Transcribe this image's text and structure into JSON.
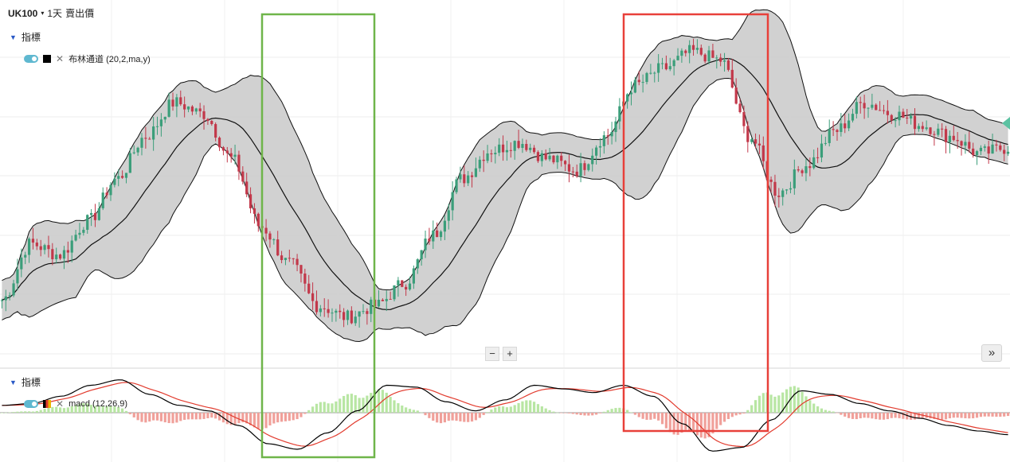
{
  "header": {
    "symbol": "UK100",
    "caret": "▾",
    "timeframe": "1天",
    "price_type": "賣出價"
  },
  "main_panel": {
    "title": "指標",
    "indicator_name": "布林通道 (20,2,ma,y)"
  },
  "macd_panel": {
    "title": "指標",
    "indicator_name": "macd (12,26,9)"
  },
  "controls": {
    "zoom_out": "−",
    "zoom_in": "+",
    "scroll_forward": "»"
  },
  "colors": {
    "up_candle": "#3b9e7a",
    "down_candle": "#c2384a",
    "band_fill": "#cfcfcf",
    "macd_line": "#000000",
    "signal_line": "#e23b2e",
    "hist_pos": "#b8e6a3",
    "hist_neg": "#f0a09a",
    "green_box": "#6fb54a",
    "red_box": "#e8403a",
    "price_marker": "#5cc2a2"
  },
  "chart_data": {
    "type": "candlestick",
    "title": "",
    "xlabel": "",
    "ylabel": "",
    "price_anchors": [
      12,
      32,
      28,
      40,
      55,
      70,
      82,
      78,
      62,
      38,
      25,
      10,
      6,
      10,
      18,
      35,
      55,
      65,
      68,
      62,
      58,
      70,
      88,
      94,
      100,
      97,
      70,
      50,
      60,
      72,
      82,
      78,
      74,
      70,
      64,
      66
    ],
    "macd_anchors": [
      8,
      10,
      18,
      30,
      36,
      20,
      8,
      2,
      -14,
      -34,
      -40,
      -22,
      2,
      30,
      28,
      12,
      2,
      14,
      30,
      26,
      22,
      30,
      18,
      -12,
      -42,
      -38,
      -8,
      24,
      20,
      10,
      2,
      -6,
      -14,
      -20,
      -24
    ],
    "annotations": [
      {
        "type": "rectangle",
        "color": "green"
      },
      {
        "type": "rectangle",
        "color": "red"
      }
    ]
  }
}
